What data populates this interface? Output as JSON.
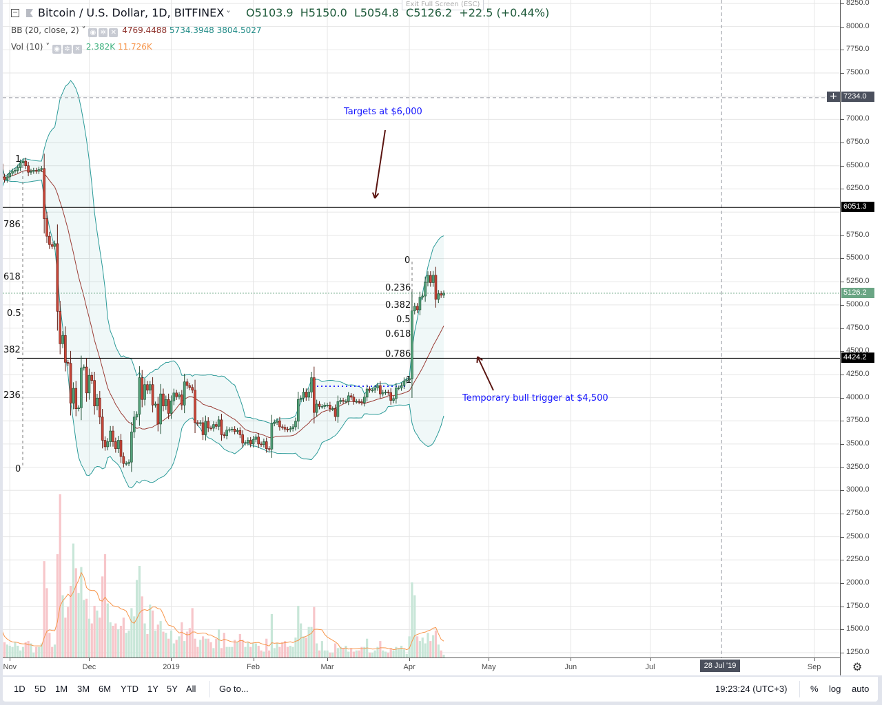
{
  "header": {
    "symbol": "Bitcoin / U.S. Dollar, 1D, BITFINEX",
    "open": "O5103.9",
    "high": "H5150.0",
    "low": "L5054.8",
    "close": "C5126.2",
    "change": "+22.5 (+0.44%)",
    "exit_fullscreen": "Exit Full Screen (ESC)"
  },
  "indicators": {
    "bb": {
      "label": "BB (20, close, 2)",
      "basis": "4769.4488",
      "upper": "5734.3948",
      "lower": "3804.5027"
    },
    "vol": {
      "label": "Vol (10)",
      "value": "2.382K",
      "ma": "11.726K"
    }
  },
  "fib_left": [
    "1",
    "786",
    "618",
    "0.5",
    "382",
    "236",
    "0"
  ],
  "fib_right": [
    "0",
    "0.236",
    "0.382",
    "0.5",
    "0.618",
    "0.786",
    "1"
  ],
  "annotations": {
    "targets": "Targets at $6,000",
    "trigger": "Temporary bull trigger at $4,500"
  },
  "price_axis": {
    "ticks": [
      "8250.0",
      "8000.0",
      "7750.0",
      "7500.0",
      "7000.0",
      "6750.0",
      "6500.0",
      "6250.0",
      "5750.0",
      "5500.0",
      "5250.0",
      "5000.0",
      "4750.0",
      "4500.0",
      "4250.0",
      "4000.0",
      "3750.0",
      "3500.0",
      "3250.0",
      "3000.0",
      "2750.0",
      "2500.0",
      "2250.0",
      "2000.0",
      "1750.0",
      "1500.0",
      "1250.0"
    ],
    "crosshair_price": "7234.0",
    "line_6000": "6051.3",
    "last_price": "5126.2",
    "line_4500": "4424.2"
  },
  "time_axis": {
    "labels": [
      {
        "label": "Nov",
        "date": "2018-11-01"
      },
      {
        "label": "Dec",
        "date": "2018-12-01"
      },
      {
        "label": "2019",
        "date": "2019-01-01"
      },
      {
        "label": "Feb",
        "date": "2019-02-01"
      },
      {
        "label": "Mar",
        "date": "2019-03-01"
      },
      {
        "label": "Apr",
        "date": "2019-04-01"
      },
      {
        "label": "May",
        "date": "2019-05-01"
      },
      {
        "label": "Jun",
        "date": "2019-06-01"
      },
      {
        "label": "Jul",
        "date": "2019-07-01"
      },
      {
        "label": "Sep",
        "date": "2019-09-01"
      }
    ],
    "crosshair_date": "28 Jul '19"
  },
  "bottom_bar": {
    "ranges": [
      "1D",
      "5D",
      "1M",
      "3M",
      "6M",
      "YTD",
      "1Y",
      "5Y",
      "All"
    ],
    "goto": "Go to...",
    "clock": "19:23:24 (UTC+3)",
    "percent": "%",
    "log": "log",
    "auto": "auto"
  },
  "colors": {
    "up": "#53a27a",
    "down": "#c9473a",
    "band": "#2a9a98",
    "basis": "#9b3d36",
    "vol_up": "#c8e6d8",
    "vol_down": "#f7c6ca",
    "vol_ma": "#f7954a",
    "annotation": "#1515ff",
    "arrow": "#5a1410"
  },
  "chart_data": {
    "type": "candlestick",
    "title": "Bitcoin / U.S. Dollar, 1D, BITFINEX",
    "ylim": [
      1250,
      8250
    ],
    "y_scale": "linear",
    "grid": true,
    "first_open": 6520,
    "columns": [
      "date",
      "close",
      "volume_K"
    ],
    "candles": [
      [
        "2018-10-29",
        6380,
        23
      ],
      [
        "2018-10-30",
        6350,
        13
      ],
      [
        "2018-10-31",
        6380,
        11
      ],
      [
        "2018-11-01",
        6420,
        10
      ],
      [
        "2018-11-02",
        6440,
        9
      ],
      [
        "2018-11-03",
        6450,
        13
      ],
      [
        "2018-11-04",
        6480,
        10
      ],
      [
        "2018-11-05",
        6530,
        6
      ],
      [
        "2018-11-06",
        6550,
        9
      ],
      [
        "2018-11-07",
        6500,
        13
      ],
      [
        "2018-11-08",
        6430,
        14
      ],
      [
        "2018-11-09",
        6440,
        12
      ],
      [
        "2018-11-10",
        6450,
        4
      ],
      [
        "2018-11-11",
        6440,
        9
      ],
      [
        "2018-11-12",
        6460,
        9
      ],
      [
        "2018-11-13",
        6470,
        12
      ],
      [
        "2018-11-14",
        5930,
        82
      ],
      [
        "2018-11-15",
        5740,
        59
      ],
      [
        "2018-11-16",
        5650,
        21
      ],
      [
        "2018-11-17",
        5630,
        9
      ],
      [
        "2018-11-18",
        5660,
        11
      ],
      [
        "2018-11-19",
        4930,
        88
      ],
      [
        "2018-11-20",
        4580,
        139
      ],
      [
        "2018-11-21",
        4670,
        53
      ],
      [
        "2018-11-22",
        4380,
        34
      ],
      [
        "2018-11-23",
        4370,
        43
      ],
      [
        "2018-11-24",
        3940,
        61
      ],
      [
        "2018-11-25",
        4100,
        97
      ],
      [
        "2018-11-26",
        3880,
        76
      ],
      [
        "2018-11-27",
        3890,
        55
      ],
      [
        "2018-11-28",
        4320,
        77
      ],
      [
        "2018-11-29",
        4330,
        49
      ],
      [
        "2018-11-30",
        4050,
        50
      ],
      [
        "2018-12-01",
        4240,
        33
      ],
      [
        "2018-12-02",
        4185,
        29
      ],
      [
        "2018-12-03",
        3910,
        44
      ],
      [
        "2018-12-04",
        3995,
        40
      ],
      [
        "2018-12-05",
        3790,
        34
      ],
      [
        "2018-12-06",
        3540,
        69
      ],
      [
        "2018-12-07",
        3470,
        88
      ],
      [
        "2018-12-08",
        3525,
        46
      ],
      [
        "2018-12-09",
        3640,
        30
      ],
      [
        "2018-12-10",
        3525,
        27
      ],
      [
        "2018-12-11",
        3450,
        29
      ],
      [
        "2018-12-12",
        3540,
        24
      ],
      [
        "2018-12-13",
        3365,
        27
      ],
      [
        "2018-12-14",
        3290,
        34
      ],
      [
        "2018-12-15",
        3290,
        21
      ],
      [
        "2018-12-16",
        3305,
        23
      ],
      [
        "2018-12-17",
        3630,
        42
      ],
      [
        "2018-12-18",
        3790,
        35
      ],
      [
        "2018-12-19",
        3820,
        66
      ],
      [
        "2018-12-20",
        4215,
        78
      ],
      [
        "2018-12-21",
        3980,
        52
      ],
      [
        "2018-12-22",
        4140,
        29
      ],
      [
        "2018-12-23",
        4080,
        20
      ],
      [
        "2018-12-24",
        4140,
        45
      ],
      [
        "2018-12-25",
        3920,
        40
      ],
      [
        "2018-12-26",
        3930,
        23
      ],
      [
        "2018-12-27",
        3715,
        28
      ],
      [
        "2018-12-28",
        4040,
        31
      ],
      [
        "2018-12-29",
        3910,
        22
      ],
      [
        "2018-12-30",
        3980,
        21
      ],
      [
        "2018-12-31",
        3830,
        16
      ],
      [
        "2019-01-01",
        3965,
        23
      ],
      [
        "2019-01-02",
        4050,
        12
      ],
      [
        "2019-01-03",
        4010,
        15
      ],
      [
        "2019-01-04",
        4030,
        18
      ],
      [
        "2019-01-05",
        3920,
        30
      ],
      [
        "2019-01-06",
        4170,
        14
      ],
      [
        "2019-01-07",
        4130,
        22
      ],
      [
        "2019-01-08",
        4110,
        25
      ],
      [
        "2019-01-09",
        4080,
        42
      ],
      [
        "2019-01-10",
        3730,
        16
      ],
      [
        "2019-01-11",
        3720,
        9
      ],
      [
        "2019-01-12",
        3730,
        15
      ],
      [
        "2019-01-13",
        3600,
        18
      ],
      [
        "2019-01-14",
        3745,
        16
      ],
      [
        "2019-01-15",
        3672,
        16
      ],
      [
        "2019-01-16",
        3670,
        13
      ],
      [
        "2019-01-17",
        3710,
        8
      ],
      [
        "2019-01-18",
        3690,
        16
      ],
      [
        "2019-01-19",
        3760,
        24
      ],
      [
        "2019-01-20",
        3600,
        8
      ],
      [
        "2019-01-21",
        3590,
        21
      ],
      [
        "2019-01-22",
        3650,
        9
      ],
      [
        "2019-01-23",
        3655,
        9
      ],
      [
        "2019-01-24",
        3660,
        9
      ],
      [
        "2019-01-25",
        3635,
        15
      ],
      [
        "2019-01-26",
        3645,
        13
      ],
      [
        "2019-01-27",
        3600,
        20
      ],
      [
        "2019-01-28",
        3510,
        15
      ],
      [
        "2019-01-29",
        3515,
        9
      ],
      [
        "2019-01-30",
        3540,
        13
      ],
      [
        "2019-01-31",
        3500,
        9
      ],
      [
        "2019-02-01",
        3550,
        12
      ],
      [
        "2019-02-02",
        3575,
        12
      ],
      [
        "2019-02-03",
        3500,
        10
      ],
      [
        "2019-02-04",
        3495,
        6
      ],
      [
        "2019-02-05",
        3525,
        5
      ],
      [
        "2019-02-06",
        3450,
        16
      ],
      [
        "2019-02-07",
        3445,
        6
      ],
      [
        "2019-02-08",
        3720,
        37
      ],
      [
        "2019-02-09",
        3735,
        8
      ],
      [
        "2019-02-10",
        3750,
        12
      ],
      [
        "2019-02-11",
        3685,
        9
      ],
      [
        "2019-02-12",
        3680,
        13
      ],
      [
        "2019-02-13",
        3660,
        14
      ],
      [
        "2019-02-14",
        3655,
        9
      ],
      [
        "2019-02-15",
        3665,
        10
      ],
      [
        "2019-02-16",
        3685,
        9
      ],
      [
        "2019-02-17",
        3745,
        17
      ],
      [
        "2019-02-18",
        3980,
        44
      ],
      [
        "2019-02-19",
        3995,
        29
      ],
      [
        "2019-02-20",
        4060,
        18
      ],
      [
        "2019-02-21",
        4005,
        17
      ],
      [
        "2019-02-22",
        4060,
        26
      ],
      [
        "2019-02-23",
        4215,
        26
      ],
      [
        "2019-02-24",
        3840,
        43
      ],
      [
        "2019-02-25",
        3930,
        12
      ],
      [
        "2019-02-26",
        3905,
        6
      ],
      [
        "2019-02-27",
        3905,
        14
      ],
      [
        "2019-02-28",
        3920,
        6
      ],
      [
        "2019-03-01",
        3920,
        6
      ],
      [
        "2019-03-02",
        3880,
        4
      ],
      [
        "2019-03-03",
        3880,
        4
      ],
      [
        "2019-03-04",
        3795,
        12
      ],
      [
        "2019-03-05",
        3957,
        8
      ],
      [
        "2019-03-06",
        3970,
        9
      ],
      [
        "2019-03-07",
        3960,
        8
      ],
      [
        "2019-03-08",
        3960,
        10
      ],
      [
        "2019-03-09",
        4020,
        5
      ],
      [
        "2019-03-10",
        4005,
        8
      ],
      [
        "2019-03-11",
        3960,
        5
      ],
      [
        "2019-03-12",
        3960,
        6
      ],
      [
        "2019-03-13",
        3955,
        6
      ],
      [
        "2019-03-14",
        3945,
        9
      ],
      [
        "2019-03-15",
        4005,
        9
      ],
      [
        "2019-03-16",
        4093,
        16
      ],
      [
        "2019-03-17",
        4080,
        4
      ],
      [
        "2019-03-18",
        4080,
        4
      ],
      [
        "2019-03-19",
        4105,
        6
      ],
      [
        "2019-03-20",
        4130,
        9
      ],
      [
        "2019-03-21",
        4040,
        14
      ],
      [
        "2019-03-22",
        4055,
        6
      ],
      [
        "2019-03-23",
        4060,
        5
      ],
      [
        "2019-03-24",
        4055,
        4
      ],
      [
        "2019-03-25",
        3970,
        8
      ],
      [
        "2019-03-26",
        3990,
        6
      ],
      [
        "2019-03-27",
        4105,
        9
      ],
      [
        "2019-03-28",
        4105,
        8
      ],
      [
        "2019-03-29",
        4130,
        10
      ],
      [
        "2019-03-30",
        4180,
        7
      ],
      [
        "2019-03-31",
        4190,
        3
      ],
      [
        "2019-04-01",
        4205,
        18
      ],
      [
        "2019-04-02",
        4935,
        64
      ],
      [
        "2019-04-03",
        4985,
        53
      ],
      [
        "2019-04-04",
        4947,
        18
      ],
      [
        "2019-04-05",
        5083,
        14
      ],
      [
        "2019-04-06",
        5095,
        17
      ],
      [
        "2019-04-07",
        5243,
        12
      ],
      [
        "2019-04-08",
        5318,
        21
      ],
      [
        "2019-04-09",
        5240,
        14
      ],
      [
        "2019-04-10",
        5320,
        19
      ],
      [
        "2019-04-11",
        5060,
        23
      ],
      [
        "2019-04-12",
        5120,
        11
      ],
      [
        "2019-04-13",
        5103.9,
        6
      ],
      [
        "2019-04-14",
        5126.2,
        2.382
      ]
    ],
    "horizontal_lines": [
      6051.3,
      4424.2
    ],
    "blue_dotted_level": 4123,
    "crosshair": {
      "price": 7234.0,
      "date": "2019-07-28"
    }
  }
}
